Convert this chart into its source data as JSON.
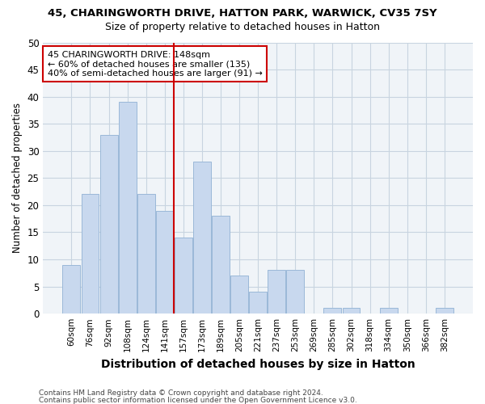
{
  "title_line1": "45, CHARINGWORTH DRIVE, HATTON PARK, WARWICK, CV35 7SY",
  "title_line2": "Size of property relative to detached houses in Hatton",
  "xlabel": "Distribution of detached houses by size in Hatton",
  "ylabel": "Number of detached properties",
  "footer_line1": "Contains HM Land Registry data © Crown copyright and database right 2024.",
  "footer_line2": "Contains public sector information licensed under the Open Government Licence v3.0.",
  "categories": [
    "60sqm",
    "76sqm",
    "92sqm",
    "108sqm",
    "124sqm",
    "141sqm",
    "157sqm",
    "173sqm",
    "189sqm",
    "205sqm",
    "221sqm",
    "237sqm",
    "253sqm",
    "269sqm",
    "285sqm",
    "302sqm",
    "318sqm",
    "334sqm",
    "350sqm",
    "366sqm",
    "382sqm"
  ],
  "values": [
    9,
    22,
    33,
    39,
    22,
    19,
    14,
    28,
    18,
    7,
    4,
    8,
    8,
    0,
    1,
    1,
    0,
    1,
    0,
    0,
    1
  ],
  "bar_color": "#c8d8ee",
  "bar_edge_color": "#9ab8d8",
  "grid_color": "#c8d4e0",
  "red_line_index": 6,
  "annotation_text": "45 CHARINGWORTH DRIVE: 148sqm\n← 60% of detached houses are smaller (135)\n40% of semi-detached houses are larger (91) →",
  "annotation_box_facecolor": "#ffffff",
  "annotation_box_edgecolor": "#cc0000",
  "bg_color": "#ffffff",
  "plot_bg_color": "#f0f4f8",
  "ylim": [
    0,
    50
  ],
  "yticks": [
    0,
    5,
    10,
    15,
    20,
    25,
    30,
    35,
    40,
    45,
    50
  ]
}
